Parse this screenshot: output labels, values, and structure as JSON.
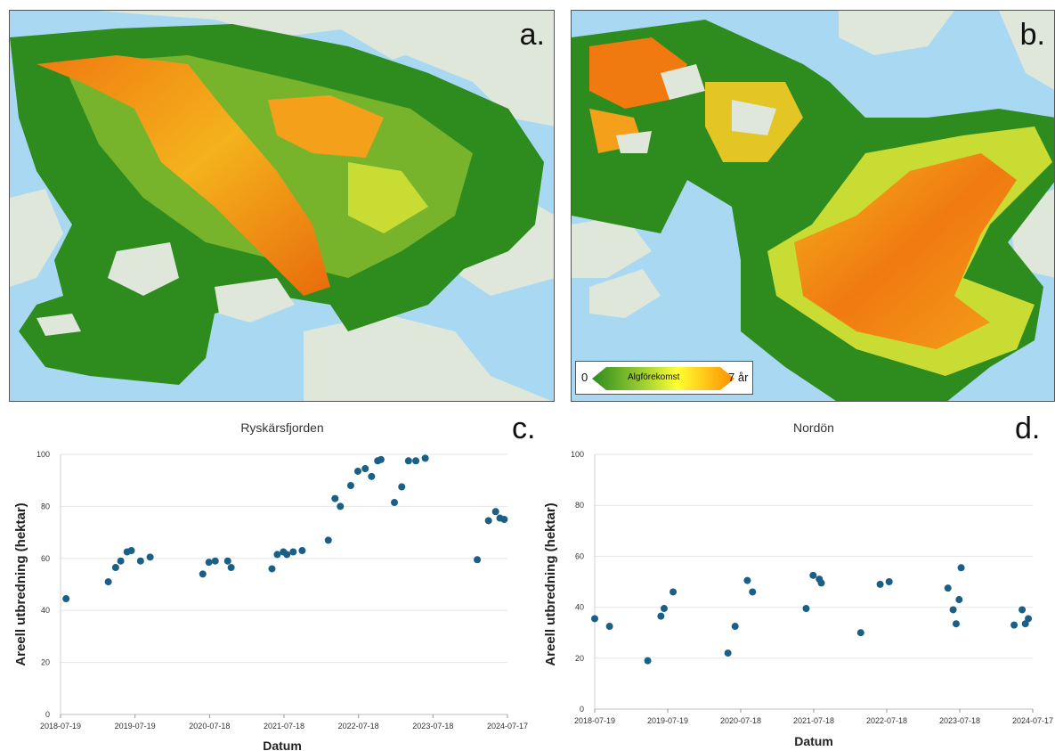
{
  "panels": {
    "a": {
      "label": "a."
    },
    "b": {
      "label": "b."
    },
    "c": {
      "label": "c."
    },
    "d": {
      "label": "d."
    }
  },
  "legend": {
    "min_label": "0",
    "center_label": "Algförekomst",
    "max_label": "7 år",
    "colors": [
      "#2e8b1e",
      "#9acd32",
      "#ffff33",
      "#ff8c00"
    ]
  },
  "colors": {
    "water": "#a9d8f2",
    "land": "#dfe6da",
    "algae_low": "#2e8b1e",
    "algae_high": "#f07a10",
    "marker": "#1a5f86",
    "grid": "#e6e6e6"
  },
  "chart_data": [
    {
      "type": "scatter",
      "title": "Ryskärsfjorden",
      "xlabel": "Datum",
      "ylabel": "Areell utbredning (hektar)",
      "ylim": [
        0,
        100
      ],
      "yticks": [
        0,
        20,
        40,
        60,
        80,
        100
      ],
      "xlim": [
        "2018-07-19",
        "2024-07-17"
      ],
      "xticks": [
        "2018-07-19",
        "2019-07-19",
        "2020-07-18",
        "2021-07-18",
        "2022-07-18",
        "2023-07-18",
        "2024-07-17"
      ],
      "grid": true,
      "series": [
        {
          "points": [
            [
              "2018-08-15",
              44.5
            ],
            [
              "2019-03-10",
              51
            ],
            [
              "2019-04-15",
              56.5
            ],
            [
              "2019-05-10",
              59
            ],
            [
              "2019-06-10",
              62.5
            ],
            [
              "2019-07-01",
              63
            ],
            [
              "2019-08-15",
              59
            ],
            [
              "2019-10-01",
              60.5
            ],
            [
              "2020-06-15",
              54
            ],
            [
              "2020-07-15",
              58.5
            ],
            [
              "2020-08-15",
              59
            ],
            [
              "2020-10-15",
              59
            ],
            [
              "2020-11-01",
              56.5
            ],
            [
              "2021-05-20",
              56
            ],
            [
              "2021-06-15",
              61.5
            ],
            [
              "2021-07-15",
              62.5
            ],
            [
              "2021-08-01",
              61.5
            ],
            [
              "2021-09-01",
              62.5
            ],
            [
              "2021-10-15",
              63
            ],
            [
              "2022-02-20",
              67
            ],
            [
              "2022-03-25",
              83
            ],
            [
              "2022-04-20",
              80
            ],
            [
              "2022-06-10",
              88
            ],
            [
              "2022-07-15",
              93.5
            ],
            [
              "2022-08-20",
              94.5
            ],
            [
              "2022-09-20",
              91.5
            ],
            [
              "2022-10-20",
              97.5
            ],
            [
              "2022-11-05",
              98
            ],
            [
              "2023-01-10",
              81.5
            ],
            [
              "2023-02-15",
              87.5
            ],
            [
              "2023-03-20",
              97.5
            ],
            [
              "2023-04-25",
              97.5
            ],
            [
              "2023-06-10",
              98.5
            ],
            [
              "2024-02-20",
              59.5
            ],
            [
              "2024-04-15",
              74.5
            ],
            [
              "2024-05-20",
              78
            ],
            [
              "2024-06-10",
              75.5
            ],
            [
              "2024-07-01",
              75
            ]
          ]
        }
      ]
    },
    {
      "type": "scatter",
      "title": "Nordön",
      "xlabel": "Datum",
      "ylabel": "Areell utbredning (hektar)",
      "ylim": [
        0,
        100
      ],
      "yticks": [
        0,
        20,
        40,
        60,
        80,
        100
      ],
      "xlim": [
        "2018-07-19",
        "2024-07-17"
      ],
      "xticks": [
        "2018-07-19",
        "2019-07-19",
        "2020-07-18",
        "2021-07-18",
        "2022-07-18",
        "2023-07-18",
        "2024-07-17"
      ],
      "grid": true,
      "series": [
        {
          "points": [
            [
              "2018-07-19",
              35.5
            ],
            [
              "2018-10-01",
              32.5
            ],
            [
              "2019-04-10",
              19
            ],
            [
              "2019-06-15",
              36.5
            ],
            [
              "2019-07-01",
              39.5
            ],
            [
              "2019-08-15",
              46
            ],
            [
              "2020-05-15",
              22
            ],
            [
              "2020-06-20",
              32.5
            ],
            [
              "2020-08-20",
              50.5
            ],
            [
              "2020-09-15",
              46
            ],
            [
              "2021-06-10",
              39.5
            ],
            [
              "2021-07-15",
              52.5
            ],
            [
              "2021-08-15",
              51
            ],
            [
              "2021-08-25",
              49.5
            ],
            [
              "2022-03-10",
              30
            ],
            [
              "2022-06-15",
              49
            ],
            [
              "2022-07-30",
              50
            ],
            [
              "2023-05-20",
              47.5
            ],
            [
              "2023-06-15",
              39
            ],
            [
              "2023-06-30",
              33.5
            ],
            [
              "2023-07-15",
              43
            ],
            [
              "2023-07-25",
              55.5
            ],
            [
              "2024-04-15",
              33
            ],
            [
              "2024-05-25",
              39
            ],
            [
              "2024-06-10",
              33.5
            ],
            [
              "2024-06-25",
              35.5
            ]
          ]
        }
      ]
    }
  ]
}
